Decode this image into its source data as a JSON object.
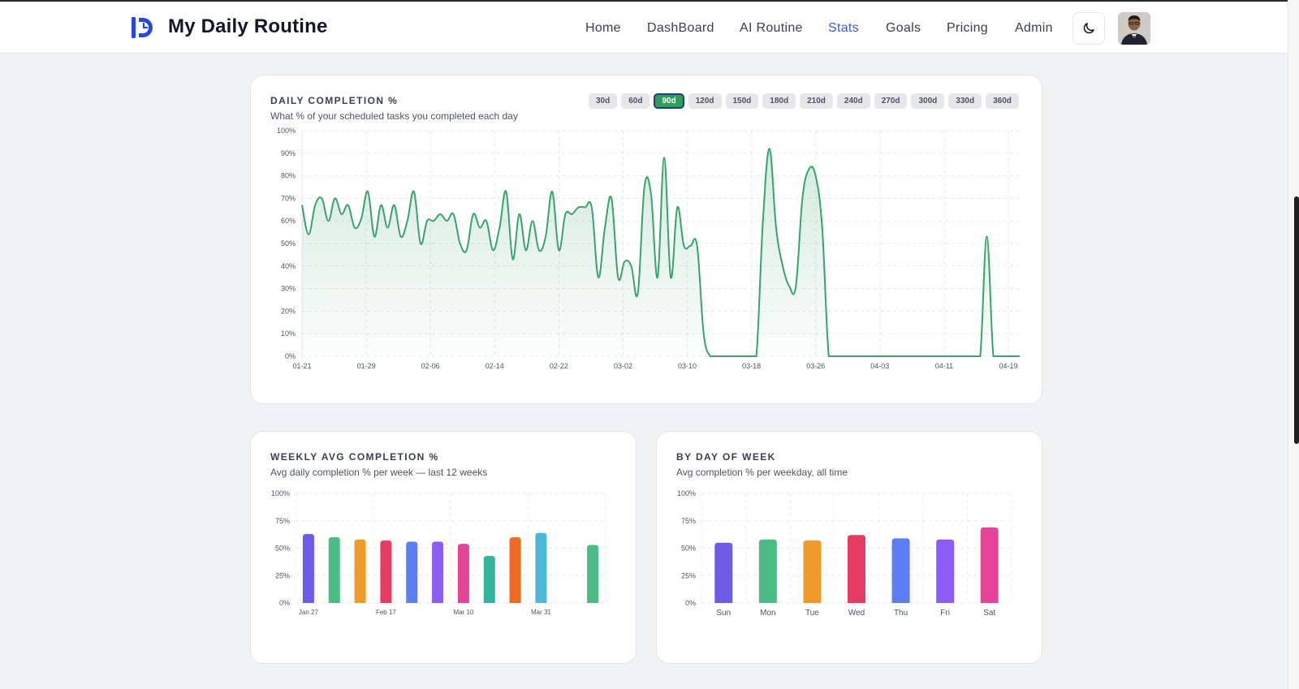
{
  "app": {
    "name": "My Daily Routine"
  },
  "nav": {
    "items": [
      {
        "label": "Home",
        "active": false
      },
      {
        "label": "DashBoard",
        "active": false
      },
      {
        "label": "AI Routine",
        "active": false
      },
      {
        "label": "Stats",
        "active": true
      },
      {
        "label": "Goals",
        "active": false
      },
      {
        "label": "Pricing",
        "active": false
      },
      {
        "label": "Admin",
        "active": false
      }
    ],
    "theme_toggle_icon": "moon-icon"
  },
  "colors": {
    "accent": "#3b5bdb",
    "green": "#3aa36b"
  },
  "daily": {
    "title": "DAILY COMPLETION %",
    "subtitle": "What % of your scheduled tasks you completed each day",
    "ranges": [
      "30d",
      "60d",
      "90d",
      "120d",
      "150d",
      "180d",
      "210d",
      "240d",
      "270d",
      "300d",
      "330d",
      "360d"
    ],
    "active_range": "90d"
  },
  "weekly": {
    "title": "WEEKLY AVG COMPLETION %",
    "subtitle": "Avg daily completion % per week — last 12 weeks"
  },
  "dow": {
    "title": "BY DAY OF WEEK",
    "subtitle": "Avg completion % per weekday, all time"
  },
  "chart_data": [
    {
      "type": "area",
      "y_ticks": [
        "0%",
        "10%",
        "20%",
        "30%",
        "40%",
        "50%",
        "60%",
        "70%",
        "80%",
        "90%",
        "100%"
      ],
      "ylim": [
        0,
        100
      ],
      "x_ticks": [
        "01-21",
        "01-29",
        "02-06",
        "02-14",
        "02-22",
        "03-02",
        "03-10",
        "03-18",
        "03-26",
        "04-03",
        "04-11",
        "04-19"
      ],
      "grid": true,
      "values": [
        67,
        54,
        67,
        70,
        60,
        70,
        63,
        67,
        57,
        61,
        73,
        53,
        67,
        57,
        67,
        53,
        60,
        73,
        50,
        60,
        60,
        63,
        60,
        63,
        50,
        47,
        63,
        57,
        60,
        47,
        57,
        73,
        43,
        63,
        47,
        60,
        47,
        53,
        73,
        47,
        63,
        63,
        66,
        66,
        66,
        35,
        57,
        70,
        35,
        42,
        40,
        28,
        75,
        72,
        35,
        88,
        35,
        66,
        49,
        49,
        49,
        10,
        0,
        0,
        0,
        0,
        0,
        0,
        0,
        0,
        60,
        92,
        57,
        40,
        31,
        31,
        70,
        83,
        80,
        57,
        0,
        0,
        0,
        0,
        0,
        0,
        0,
        0,
        0,
        0,
        0,
        0,
        0,
        0,
        0,
        0,
        0,
        0,
        0,
        0,
        0,
        0,
        0,
        0,
        53,
        0,
        0,
        0,
        0,
        0
      ]
    },
    {
      "type": "bar",
      "y_ticks": [
        "0%",
        "25%",
        "50%",
        "75%",
        "100%"
      ],
      "ylim": [
        0,
        100
      ],
      "x_ticks": [
        "Jan 27",
        "Feb 17",
        "Mar 10",
        "Mar 31"
      ],
      "values": [
        63,
        60,
        58,
        57,
        56,
        56,
        54,
        43,
        60,
        64,
        0,
        53
      ],
      "colors": [
        "#6d5ce8",
        "#4dbb85",
        "#ee9b2b",
        "#e63b62",
        "#5b7ff2",
        "#8b5cf6",
        "#e54599",
        "#34b39d",
        "#f06a22",
        "#4ab8d6",
        "#6d5ce8",
        "#4dbb85"
      ]
    },
    {
      "type": "bar",
      "y_ticks": [
        "0%",
        "25%",
        "50%",
        "75%",
        "100%"
      ],
      "ylim": [
        0,
        100
      ],
      "categories": [
        "Sun",
        "Mon",
        "Tue",
        "Wed",
        "Thu",
        "Fri",
        "Sat"
      ],
      "values": [
        55,
        58,
        57,
        62,
        59,
        58,
        69
      ],
      "colors": [
        "#6d5ce8",
        "#4dbb85",
        "#ee9b2b",
        "#e63b62",
        "#5b7ff2",
        "#8b5cf6",
        "#e54599"
      ]
    }
  ]
}
